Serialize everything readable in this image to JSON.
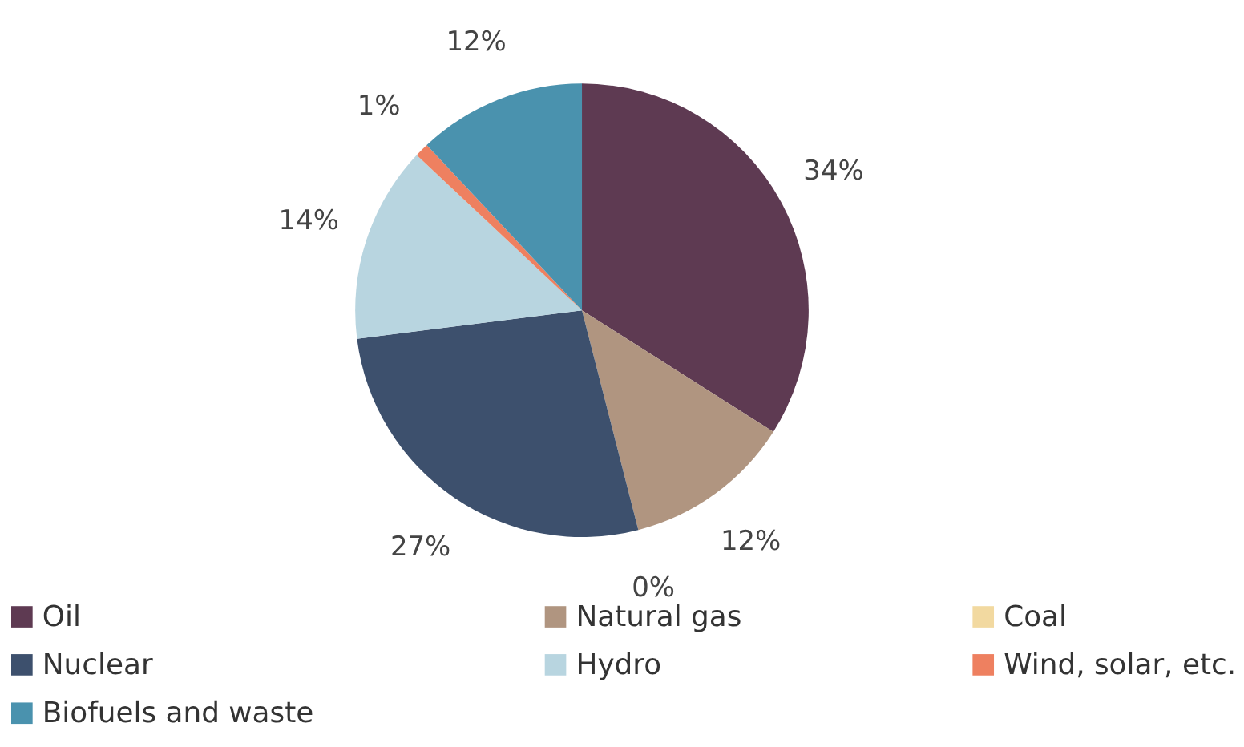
{
  "chart_data": {
    "type": "pie",
    "categories": [
      "Oil",
      "Natural gas",
      "Coal",
      "Nuclear",
      "Hydro",
      "Wind, solar, etc.",
      "Biofuels and waste"
    ],
    "values": [
      34,
      12,
      0,
      27,
      14,
      1,
      12
    ],
    "value_labels": [
      "34%",
      "12%",
      "0%",
      "27%",
      "14%",
      "1%",
      "12%"
    ],
    "colors": [
      "#5e3a52",
      "#b09580",
      "#f2d9a0",
      "#3d506d",
      "#b8d5e0",
      "#ee8060",
      "#4a92ae"
    ],
    "legend": "bottom"
  }
}
